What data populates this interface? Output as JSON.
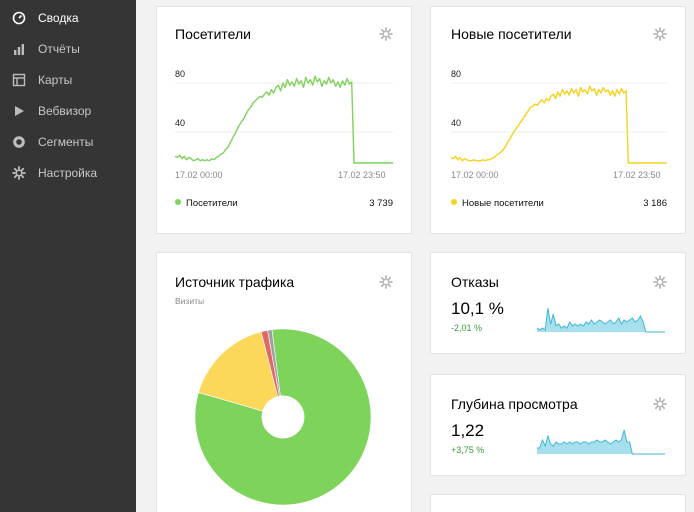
{
  "sidebar": {
    "items": [
      {
        "label": "Сводка",
        "icon": "dashboard-icon",
        "active": true
      },
      {
        "label": "Отчёты",
        "icon": "bar-chart-icon",
        "active": false
      },
      {
        "label": "Карты",
        "icon": "map-icon",
        "active": false
      },
      {
        "label": "Вебвизор",
        "icon": "play-icon",
        "active": false
      },
      {
        "label": "Сегменты",
        "icon": "segments-icon",
        "active": false
      },
      {
        "label": "Настройка",
        "icon": "gear-icon",
        "active": false
      }
    ]
  },
  "widgets": {
    "visitors": {
      "title": "Посетители",
      "y_ticks": [
        "80",
        "40"
      ],
      "x_start": "17.02 00:00",
      "x_end": "17.02 23:50",
      "legend_label": "Посетители",
      "total": "3 739",
      "color": "#7ed35a"
    },
    "new_visitors": {
      "title": "Новые посетители",
      "y_ticks": [
        "80",
        "40"
      ],
      "x_start": "17.02 00:00",
      "x_end": "17.02 23:50",
      "legend_label": "Новые посетители",
      "total": "3 186",
      "color": "#f7d21c"
    },
    "traffic": {
      "title": "Источник трафика",
      "subtitle": "Визиты"
    },
    "bounces": {
      "title": "Отказы",
      "value": "10,1 %",
      "delta": "-2,01 %",
      "color": "#3cb8d8"
    },
    "depth": {
      "title": "Глубина просмотра",
      "value": "1,22",
      "delta": "+3,75 %",
      "color": "#3cb8d8"
    }
  },
  "chart_data": [
    {
      "type": "line",
      "series": [
        {
          "name": "Посетители",
          "values": [
            6,
            5,
            7,
            4,
            6,
            3,
            5,
            4,
            2,
            3,
            4,
            2,
            3,
            2,
            3,
            2,
            4,
            3,
            5,
            6,
            8,
            9,
            12,
            14,
            18,
            22,
            26,
            30,
            34,
            37,
            40,
            44,
            48,
            50,
            54,
            56,
            58,
            60,
            59,
            62,
            64,
            61,
            66,
            63,
            68,
            70,
            65,
            72,
            68,
            75,
            70,
            73,
            69,
            76,
            71,
            74,
            68,
            77,
            72,
            75,
            70,
            78,
            73,
            76,
            69,
            74,
            71,
            77,
            72,
            75,
            69,
            73,
            68,
            74,
            70,
            76,
            71,
            73,
            0,
            0,
            0,
            0,
            0,
            0,
            0,
            0,
            0,
            0,
            0,
            0,
            0,
            0,
            0,
            0,
            0,
            0
          ]
        }
      ],
      "ylim": [
        0,
        90
      ]
    },
    {
      "type": "line",
      "series": [
        {
          "name": "Новые посетители",
          "values": [
            5,
            4,
            6,
            3,
            5,
            2,
            4,
            3,
            2,
            2,
            3,
            2,
            2,
            2,
            3,
            2,
            3,
            3,
            4,
            5,
            7,
            8,
            10,
            12,
            15,
            19,
            22,
            26,
            29,
            32,
            35,
            38,
            41,
            44,
            47,
            50,
            51,
            53,
            52,
            55,
            57,
            54,
            58,
            56,
            60,
            62,
            58,
            64,
            60,
            66,
            62,
            65,
            61,
            67,
            63,
            66,
            60,
            68,
            64,
            66,
            62,
            69,
            65,
            67,
            61,
            66,
            63,
            68,
            64,
            66,
            61,
            65,
            60,
            66,
            62,
            67,
            63,
            65,
            0,
            0,
            0,
            0,
            0,
            0,
            0,
            0,
            0,
            0,
            0,
            0,
            0,
            0,
            0,
            0,
            0,
            0
          ]
        }
      ],
      "ylim": [
        0,
        90
      ]
    },
    {
      "type": "pie",
      "series": [
        {
          "name": "Визиты",
          "values": [
            81.5,
            16.5,
            1.2,
            0.8
          ]
        }
      ],
      "colors": [
        "#7ed35a",
        "#fcd85a",
        "#e06868",
        "#a0a0a0"
      ]
    },
    {
      "type": "area",
      "series": [
        {
          "name": "Отказы",
          "values": [
            2,
            1,
            2,
            1,
            12,
            4,
            9,
            3,
            4,
            2,
            3,
            2,
            5,
            3,
            4,
            3,
            4,
            3,
            5,
            4,
            6,
            4,
            5,
            6,
            5,
            4,
            5,
            6,
            4,
            5,
            7,
            4,
            6,
            5,
            6,
            7,
            5,
            6,
            8,
            5,
            0,
            0,
            0,
            0,
            0,
            0,
            0,
            0
          ]
        }
      ],
      "ylim": [
        0,
        14
      ]
    },
    {
      "type": "area",
      "series": [
        {
          "name": "Глубина просмотра",
          "values": [
            3,
            3,
            7,
            4,
            9,
            5,
            4,
            6,
            5,
            5,
            6,
            5,
            6,
            5,
            6,
            6,
            5,
            6,
            6,
            5,
            6,
            6,
            7,
            6,
            6,
            7,
            6,
            5,
            6,
            7,
            6,
            7,
            12,
            6,
            6,
            0,
            0,
            0,
            0,
            0,
            0,
            0,
            0,
            0,
            0,
            0,
            0,
            0
          ]
        }
      ],
      "ylim": [
        0,
        14
      ]
    }
  ]
}
